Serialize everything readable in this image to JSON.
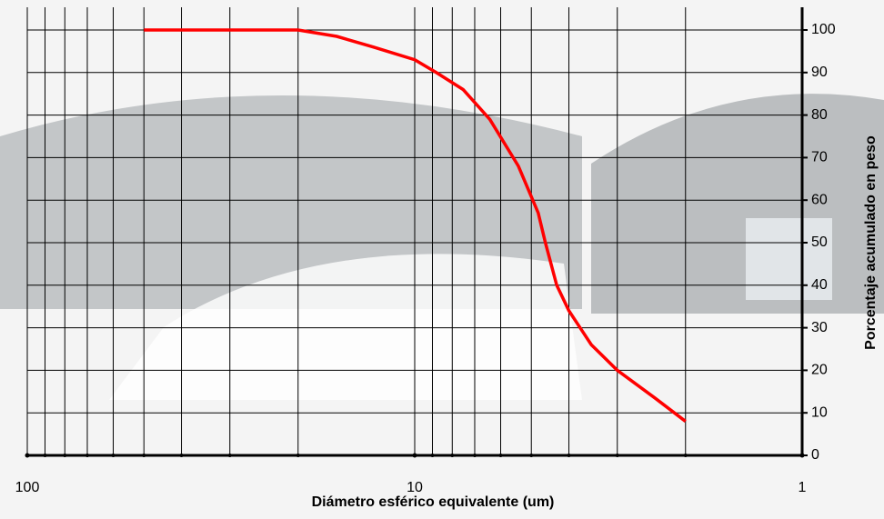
{
  "chart_data": {
    "type": "line",
    "x_scale": "log",
    "xlabel": "Diámetro esférico equivalente (um)",
    "ylabel": "Porcentaje acumulado en peso",
    "xlim": [
      100,
      1
    ],
    "ylim": [
      0,
      100
    ],
    "xticks": [
      100,
      10,
      1
    ],
    "xminor": [
      90,
      80,
      70,
      60,
      50,
      40,
      30,
      20,
      9,
      8,
      7,
      6,
      5,
      4,
      3,
      2
    ],
    "yticks": [
      0,
      10,
      20,
      30,
      40,
      50,
      60,
      70,
      80,
      90,
      100
    ],
    "grid": true,
    "series": [
      {
        "color": "#ff0000",
        "x": [
          50,
          20,
          15.9,
          12.8,
          10,
          8.8,
          7.5,
          6.4,
          5.4,
          4.8,
          4.6,
          4.3,
          4.0,
          3.5,
          3.0,
          2.4,
          2.0
        ],
        "values": [
          100,
          100,
          98.5,
          96,
          93,
          90,
          86,
          79,
          68,
          57,
          50,
          40,
          34,
          26,
          20,
          13.5,
          8
        ]
      }
    ]
  }
}
